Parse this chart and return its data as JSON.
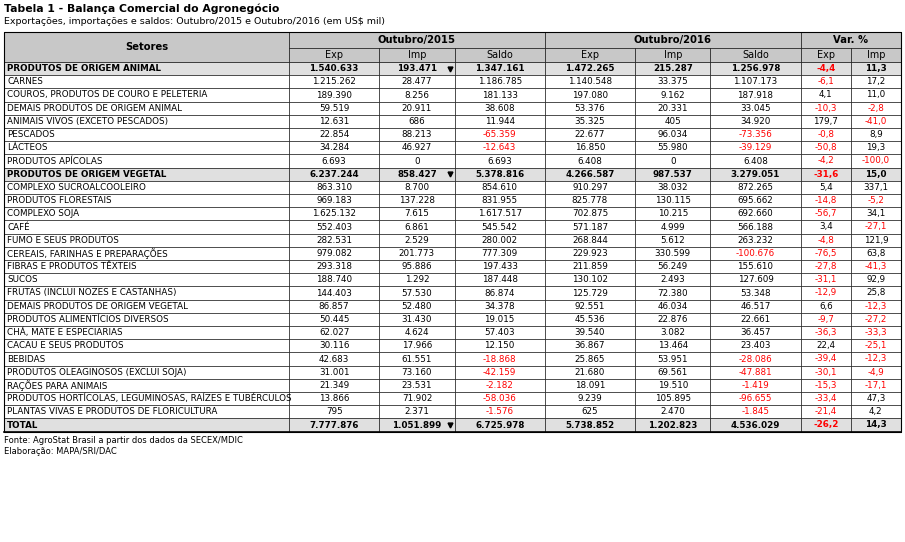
{
  "title": "Tabela 1 - Balança Comercial do Agronegócio",
  "subtitle": "Exportações, importações e saldos: Outubro/2015 e Outubro/2016 (em US$ mil)",
  "col_headers": [
    "Setores",
    "Exp",
    "Imp",
    "Saldo",
    "Exp",
    "Imp",
    "Saldo",
    "Exp",
    "Imp"
  ],
  "group_headers": [
    "Outubro/2015",
    "Outubro/2016",
    "Var. %"
  ],
  "rows": [
    {
      "name": "PRODUTOS DE ORIGEM ANIMAL",
      "bold": true,
      "vals": [
        "1.540.633",
        "193.471",
        "1.347.161",
        "1.472.265",
        "215.287",
        "1.256.978",
        "-4,4",
        "11,3"
      ],
      "red": [
        false,
        false,
        false,
        false,
        false,
        false,
        true,
        false
      ]
    },
    {
      "name": "CARNES",
      "bold": false,
      "vals": [
        "1.215.262",
        "28.477",
        "1.186.785",
        "1.140.548",
        "33.375",
        "1.107.173",
        "-6,1",
        "17,2"
      ],
      "red": [
        false,
        false,
        false,
        false,
        false,
        false,
        true,
        false
      ]
    },
    {
      "name": "COUROS, PRODUTOS DE COURO E PELETERIA",
      "bold": false,
      "vals": [
        "189.390",
        "8.256",
        "181.133",
        "197.080",
        "9.162",
        "187.918",
        "4,1",
        "11,0"
      ],
      "red": [
        false,
        false,
        false,
        false,
        false,
        false,
        false,
        false
      ]
    },
    {
      "name": "DEMAIS PRODUTOS DE ORIGEM ANIMAL",
      "bold": false,
      "vals": [
        "59.519",
        "20.911",
        "38.608",
        "53.376",
        "20.331",
        "33.045",
        "-10,3",
        "-2,8"
      ],
      "red": [
        false,
        false,
        false,
        false,
        false,
        false,
        true,
        true
      ]
    },
    {
      "name": "ANIMAIS VIVOS (EXCETO PESCADOS)",
      "bold": false,
      "vals": [
        "12.631",
        "686",
        "11.944",
        "35.325",
        "405",
        "34.920",
        "179,7",
        "-41,0"
      ],
      "red": [
        false,
        false,
        false,
        false,
        false,
        false,
        false,
        true
      ]
    },
    {
      "name": "PESCADOS",
      "bold": false,
      "vals": [
        "22.854",
        "88.213",
        "-65.359",
        "22.677",
        "96.034",
        "-73.356",
        "-0,8",
        "8,9"
      ],
      "red": [
        false,
        false,
        true,
        false,
        false,
        true,
        true,
        false
      ]
    },
    {
      "name": "LÁCTEOS",
      "bold": false,
      "vals": [
        "34.284",
        "46.927",
        "-12.643",
        "16.850",
        "55.980",
        "-39.129",
        "-50,8",
        "19,3"
      ],
      "red": [
        false,
        false,
        true,
        false,
        false,
        true,
        true,
        false
      ]
    },
    {
      "name": "PRODUTOS APÍCOLAS",
      "bold": false,
      "vals": [
        "6.693",
        "0",
        "6.693",
        "6.408",
        "0",
        "6.408",
        "-4,2",
        "-100,0"
      ],
      "red": [
        false,
        false,
        false,
        false,
        false,
        false,
        true,
        true
      ]
    },
    {
      "name": "PRODUTOS DE ORIGEM VEGETAL",
      "bold": true,
      "vals": [
        "6.237.244",
        "858.427",
        "5.378.816",
        "4.266.587",
        "987.537",
        "3.279.051",
        "-31,6",
        "15,0"
      ],
      "red": [
        false,
        false,
        false,
        false,
        false,
        false,
        true,
        false
      ]
    },
    {
      "name": "COMPLEXO SUCROALCOOLEIRO",
      "bold": false,
      "vals": [
        "863.310",
        "8.700",
        "854.610",
        "910.297",
        "38.032",
        "872.265",
        "5,4",
        "337,1"
      ],
      "red": [
        false,
        false,
        false,
        false,
        false,
        false,
        false,
        false
      ]
    },
    {
      "name": "PRODUTOS FLORESTAIS",
      "bold": false,
      "vals": [
        "969.183",
        "137.228",
        "831.955",
        "825.778",
        "130.115",
        "695.662",
        "-14,8",
        "-5,2"
      ],
      "red": [
        false,
        false,
        false,
        false,
        false,
        false,
        true,
        true
      ]
    },
    {
      "name": "COMPLEXO SOJA",
      "bold": false,
      "vals": [
        "1.625.132",
        "7.615",
        "1.617.517",
        "702.875",
        "10.215",
        "692.660",
        "-56,7",
        "34,1"
      ],
      "red": [
        false,
        false,
        false,
        false,
        false,
        false,
        true,
        false
      ]
    },
    {
      "name": "CAFÉ",
      "bold": false,
      "vals": [
        "552.403",
        "6.861",
        "545.542",
        "571.187",
        "4.999",
        "566.188",
        "3,4",
        "-27,1"
      ],
      "red": [
        false,
        false,
        false,
        false,
        false,
        false,
        false,
        true
      ]
    },
    {
      "name": "FUMO E SEUS PRODUTOS",
      "bold": false,
      "vals": [
        "282.531",
        "2.529",
        "280.002",
        "268.844",
        "5.612",
        "263.232",
        "-4,8",
        "121,9"
      ],
      "red": [
        false,
        false,
        false,
        false,
        false,
        false,
        true,
        false
      ]
    },
    {
      "name": "CEREAIS, FARINHAS E PREPARAÇÕES",
      "bold": false,
      "vals": [
        "979.082",
        "201.773",
        "777.309",
        "229.923",
        "330.599",
        "-100.676",
        "-76,5",
        "63,8"
      ],
      "red": [
        false,
        false,
        false,
        false,
        false,
        true,
        true,
        false
      ]
    },
    {
      "name": "FIBRAS E PRODUTOS TÊXTEIS",
      "bold": false,
      "vals": [
        "293.318",
        "95.886",
        "197.433",
        "211.859",
        "56.249",
        "155.610",
        "-27,8",
        "-41,3"
      ],
      "red": [
        false,
        false,
        false,
        false,
        false,
        false,
        true,
        true
      ]
    },
    {
      "name": "SUCOS",
      "bold": false,
      "vals": [
        "188.740",
        "1.292",
        "187.448",
        "130.102",
        "2.493",
        "127.609",
        "-31,1",
        "92,9"
      ],
      "red": [
        false,
        false,
        false,
        false,
        false,
        false,
        true,
        false
      ]
    },
    {
      "name": "FRUTAS (INCLUI NOZES E CASTANHAS)",
      "bold": false,
      "vals": [
        "144.403",
        "57.530",
        "86.874",
        "125.729",
        "72.380",
        "53.348",
        "-12,9",
        "25,8"
      ],
      "red": [
        false,
        false,
        false,
        false,
        false,
        false,
        true,
        false
      ]
    },
    {
      "name": "DEMAIS PRODUTOS DE ORIGEM VEGETAL",
      "bold": false,
      "vals": [
        "86.857",
        "52.480",
        "34.378",
        "92.551",
        "46.034",
        "46.517",
        "6,6",
        "-12,3"
      ],
      "red": [
        false,
        false,
        false,
        false,
        false,
        false,
        false,
        true
      ]
    },
    {
      "name": "PRODUTOS ALIMENTÍCIOS DIVERSOS",
      "bold": false,
      "vals": [
        "50.445",
        "31.430",
        "19.015",
        "45.536",
        "22.876",
        "22.661",
        "-9,7",
        "-27,2"
      ],
      "red": [
        false,
        false,
        false,
        false,
        false,
        false,
        true,
        true
      ]
    },
    {
      "name": "CHÁ, MATE E ESPECIARIAS",
      "bold": false,
      "vals": [
        "62.027",
        "4.624",
        "57.403",
        "39.540",
        "3.082",
        "36.457",
        "-36,3",
        "-33,3"
      ],
      "red": [
        false,
        false,
        false,
        false,
        false,
        false,
        true,
        true
      ]
    },
    {
      "name": "CACAU E SEUS PRODUTOS",
      "bold": false,
      "vals": [
        "30.116",
        "17.966",
        "12.150",
        "36.867",
        "13.464",
        "23.403",
        "22,4",
        "-25,1"
      ],
      "red": [
        false,
        false,
        false,
        false,
        false,
        false,
        false,
        true
      ]
    },
    {
      "name": "BEBIDAS",
      "bold": false,
      "vals": [
        "42.683",
        "61.551",
        "-18.868",
        "25.865",
        "53.951",
        "-28.086",
        "-39,4",
        "-12,3"
      ],
      "red": [
        false,
        false,
        true,
        false,
        false,
        true,
        true,
        true
      ]
    },
    {
      "name": "PRODUTOS OLEAGINOSOS (EXCLUI SOJA)",
      "bold": false,
      "vals": [
        "31.001",
        "73.160",
        "-42.159",
        "21.680",
        "69.561",
        "-47.881",
        "-30,1",
        "-4,9"
      ],
      "red": [
        false,
        false,
        true,
        false,
        false,
        true,
        true,
        true
      ]
    },
    {
      "name": "RAÇÕES PARA ANIMAIS",
      "bold": false,
      "vals": [
        "21.349",
        "23.531",
        "-2.182",
        "18.091",
        "19.510",
        "-1.419",
        "-15,3",
        "-17,1"
      ],
      "red": [
        false,
        false,
        true,
        false,
        false,
        true,
        true,
        true
      ]
    },
    {
      "name": "PRODUTOS HORTÍCOLAS, LEGUMINOSAS, RAÍZES E TUBÉRCULOS",
      "bold": false,
      "vals": [
        "13.866",
        "71.902",
        "-58.036",
        "9.239",
        "105.895",
        "-96.655",
        "-33,4",
        "47,3"
      ],
      "red": [
        false,
        false,
        true,
        false,
        false,
        true,
        true,
        false
      ]
    },
    {
      "name": "PLANTAS VIVAS E PRODUTOS DE FLORICULTURA",
      "bold": false,
      "vals": [
        "795",
        "2.371",
        "-1.576",
        "625",
        "2.470",
        "-1.845",
        "-21,4",
        "4,2"
      ],
      "red": [
        false,
        false,
        true,
        false,
        false,
        true,
        true,
        false
      ]
    },
    {
      "name": "TOTAL",
      "bold": true,
      "vals": [
        "7.777.876",
        "1.051.899",
        "6.725.978",
        "5.738.852",
        "1.202.823",
        "4.536.029",
        "-26,2",
        "14,3"
      ],
      "red": [
        false,
        false,
        false,
        false,
        false,
        false,
        true,
        false
      ]
    }
  ],
  "footer": [
    "Fonte: AgroStat Brasil a partir dos dados da SECEX/MDIC",
    "Elaboração: MAPA/SRI/DAC"
  ],
  "bg_color": "#FFFFFF",
  "header_bg": "#C8C8C8",
  "bold_row_bg": "#E0E0E0",
  "normal_row_bg": "#FFFFFF",
  "border_color": "#000000",
  "red_color": "#FF0000",
  "black_color": "#000000",
  "triangle_rows": [
    0,
    8,
    27
  ],
  "triangle_col": 1
}
